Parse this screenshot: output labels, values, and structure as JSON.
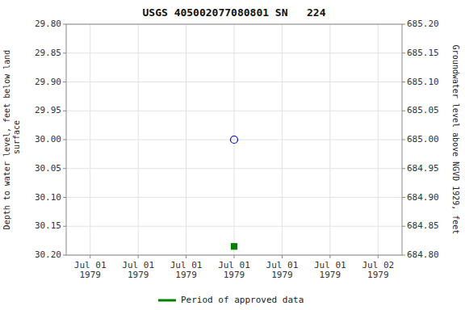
{
  "chart_data": {
    "type": "scatter",
    "title": "USGS 405002077080801 SN   224",
    "ylabel": "Depth to water level, feet below land\n surface",
    "y2label": "Groundwater level above NGVD 1929, feet",
    "categories": [
      "Jul 01\n1979",
      "Jul 01\n1979",
      "Jul 01\n1979",
      "Jul 01\n1979",
      "Jul 01\n1979",
      "Jul 01\n1979",
      "Jul 02\n1979"
    ],
    "series": [
      {
        "color": "#0000cc",
        "marker": "open-circle",
        "values": [
          null,
          null,
          null,
          30,
          null,
          null,
          null
        ]
      },
      {
        "name": "Period of approved data",
        "color": "#008000",
        "marker": "square",
        "values": [
          null,
          null,
          null,
          30.185,
          null,
          null,
          null
        ]
      }
    ],
    "ylim": [
      30.2,
      29.8
    ],
    "yticks": [
      {
        "value": 29.8,
        "label": "29.80"
      },
      29.85,
      {
        "value": 29.9,
        "label": "29.90"
      },
      29.95,
      {
        "value": 30,
        "label": "30.00"
      },
      30.05,
      {
        "value": 30.1,
        "label": "30.10"
      },
      30.15,
      {
        "value": 30.2,
        "label": "30.20"
      }
    ],
    "y2lim": [
      684.8,
      685.2
    ],
    "y2ticks": [
      {
        "value": 684.8,
        "label": "684.80"
      },
      684.85,
      {
        "value": 684.9,
        "label": "684.90"
      },
      684.95,
      {
        "value": 685,
        "label": "685.00"
      },
      685.05,
      {
        "value": 685.1,
        "label": "685.10"
      },
      685.15,
      {
        "value": 685.2,
        "label": "685.20"
      }
    ],
    "grid": true,
    "legend": "bottom"
  }
}
